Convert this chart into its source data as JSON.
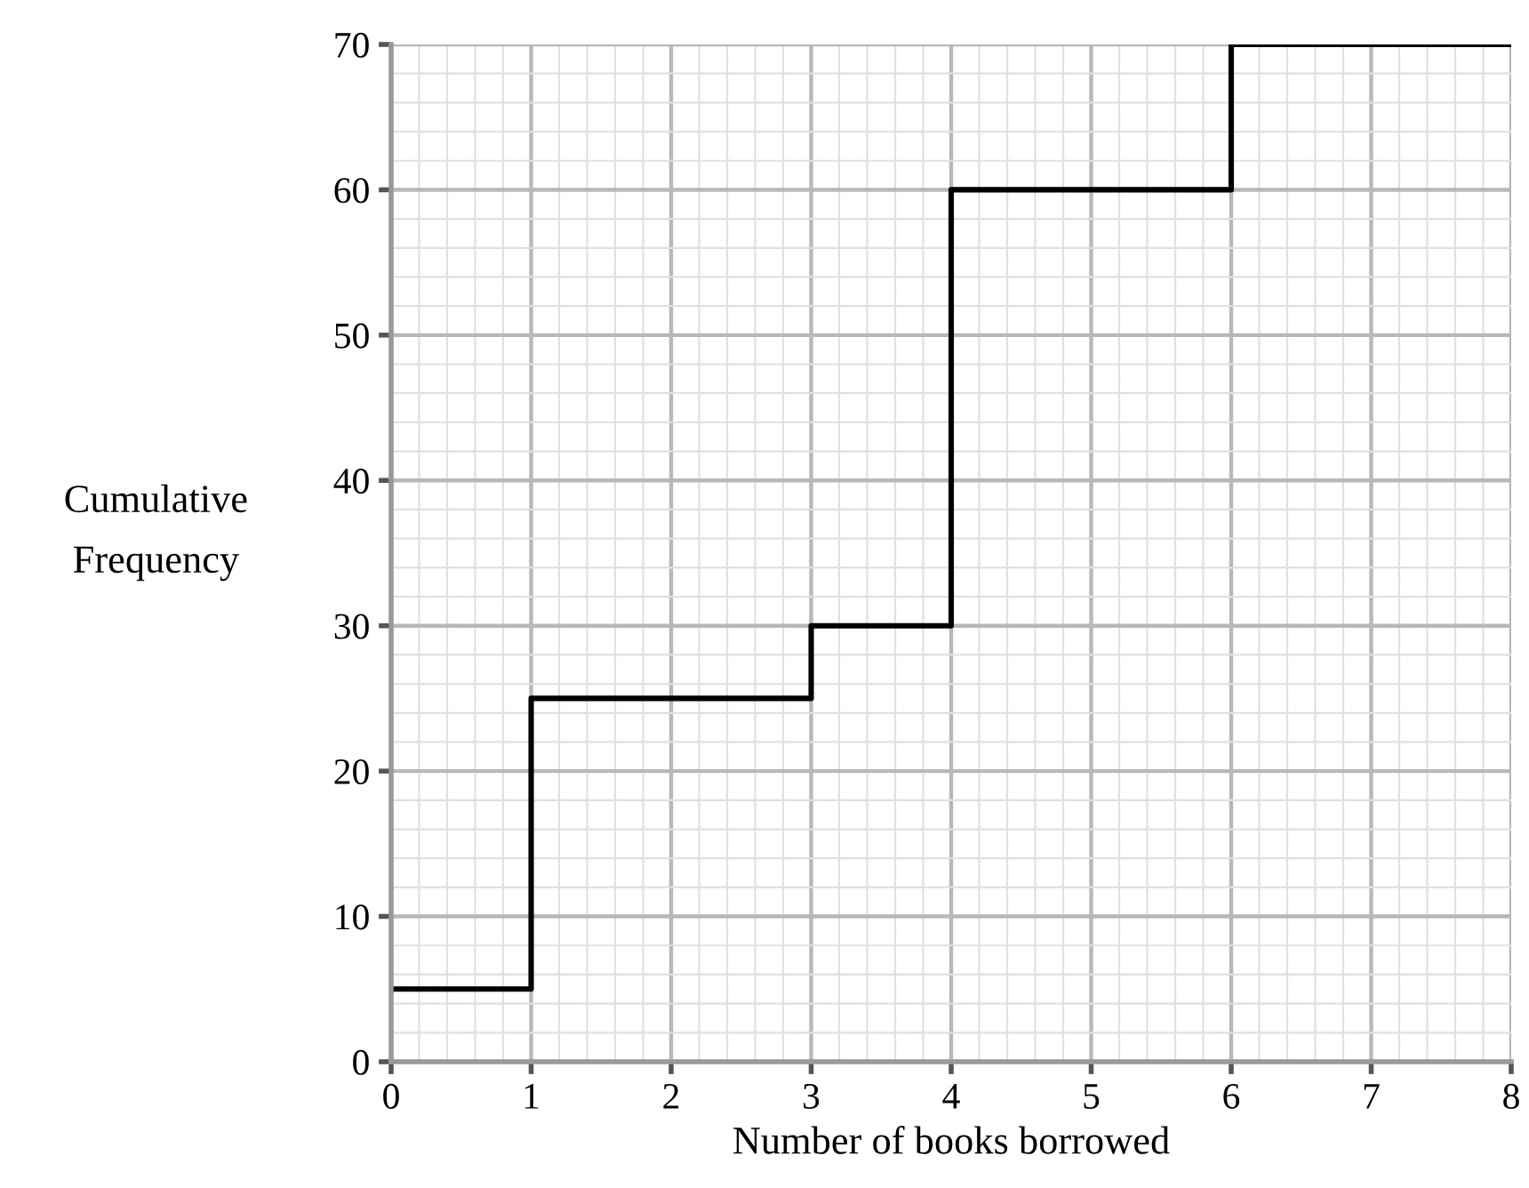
{
  "chart_data": {
    "type": "step",
    "xlabel": "Number of books borrowed",
    "ylabel": "Cumulative\nFrequency",
    "x": [
      0,
      1,
      3,
      4,
      6,
      8
    ],
    "series": [
      {
        "color": "#000000",
        "values": [
          5,
          25,
          30,
          60,
          70,
          70
        ]
      }
    ],
    "xlim": [
      0,
      8
    ],
    "ylim": [
      0,
      70
    ],
    "xticks": [
      0,
      1,
      2,
      3,
      4,
      5,
      6,
      7,
      8
    ],
    "yticks": [
      0,
      10,
      20,
      30,
      40,
      50,
      60,
      70
    ],
    "grid": true
  }
}
